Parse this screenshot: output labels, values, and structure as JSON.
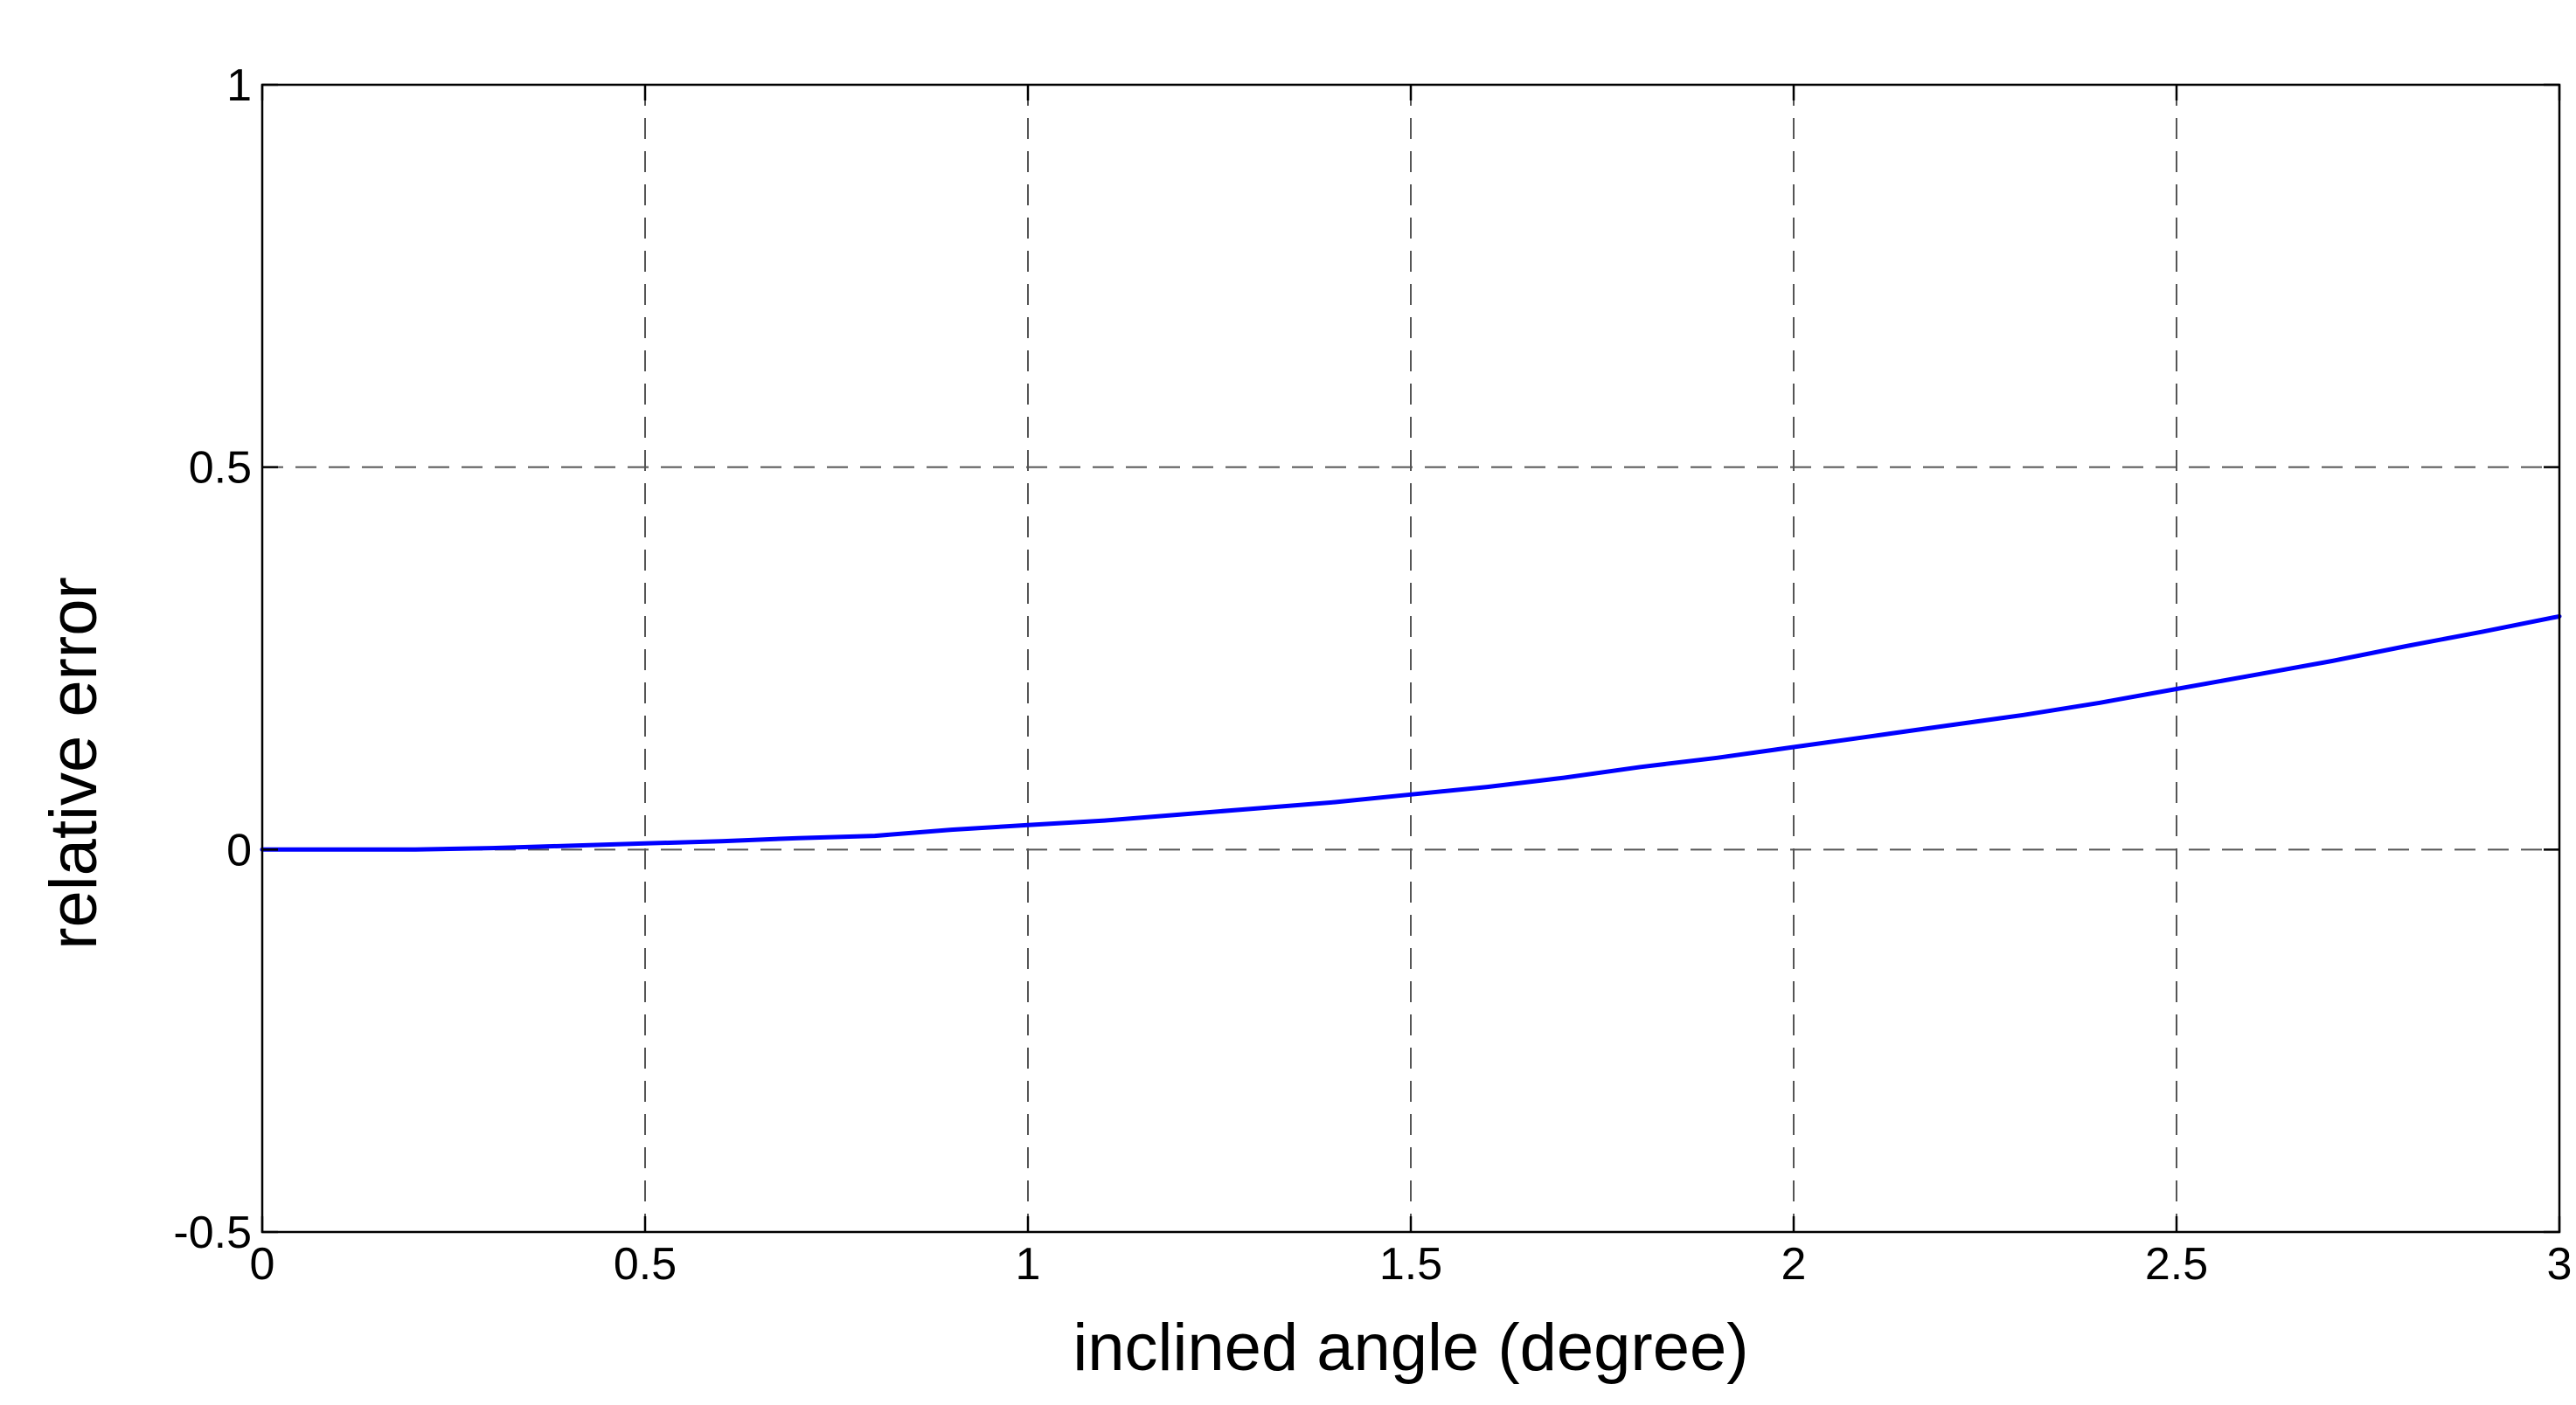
{
  "chart_data": {
    "type": "line",
    "title": "",
    "xlabel": "inclined angle (degree)",
    "ylabel": "relative error",
    "xlim": [
      0,
      3
    ],
    "ylim": [
      -0.5,
      1
    ],
    "xticks": [
      0,
      0.5,
      1,
      1.5,
      2,
      2.5,
      3
    ],
    "xtick_labels": [
      "0",
      "0.5",
      "1",
      "1.5",
      "2",
      "2.5",
      "3"
    ],
    "yticks": [
      -0.5,
      0,
      0.5,
      1
    ],
    "ytick_labels": [
      "-0.5",
      "0",
      "0.5",
      "1"
    ],
    "grid": true,
    "legend": "none",
    "series": [
      {
        "color": "#0000ff",
        "x": [
          0,
          0.1,
          0.2,
          0.3,
          0.4,
          0.5,
          0.6,
          0.7,
          0.8,
          0.9,
          1.0,
          1.1,
          1.2,
          1.3,
          1.4,
          1.5,
          1.6,
          1.7,
          1.8,
          1.9,
          2.0,
          2.1,
          2.2,
          2.3,
          2.4,
          2.5,
          2.6,
          2.7,
          2.8,
          2.9,
          3.0
        ],
        "y": [
          0.0,
          0.0,
          0.0,
          0.002,
          0.005,
          0.008,
          0.011,
          0.015,
          0.018,
          0.026,
          0.032,
          0.038,
          0.046,
          0.054,
          0.062,
          0.072,
          0.082,
          0.094,
          0.108,
          0.12,
          0.134,
          0.148,
          0.162,
          0.176,
          0.192,
          0.21,
          0.228,
          0.246,
          0.266,
          0.285,
          0.305
        ]
      }
    ]
  }
}
